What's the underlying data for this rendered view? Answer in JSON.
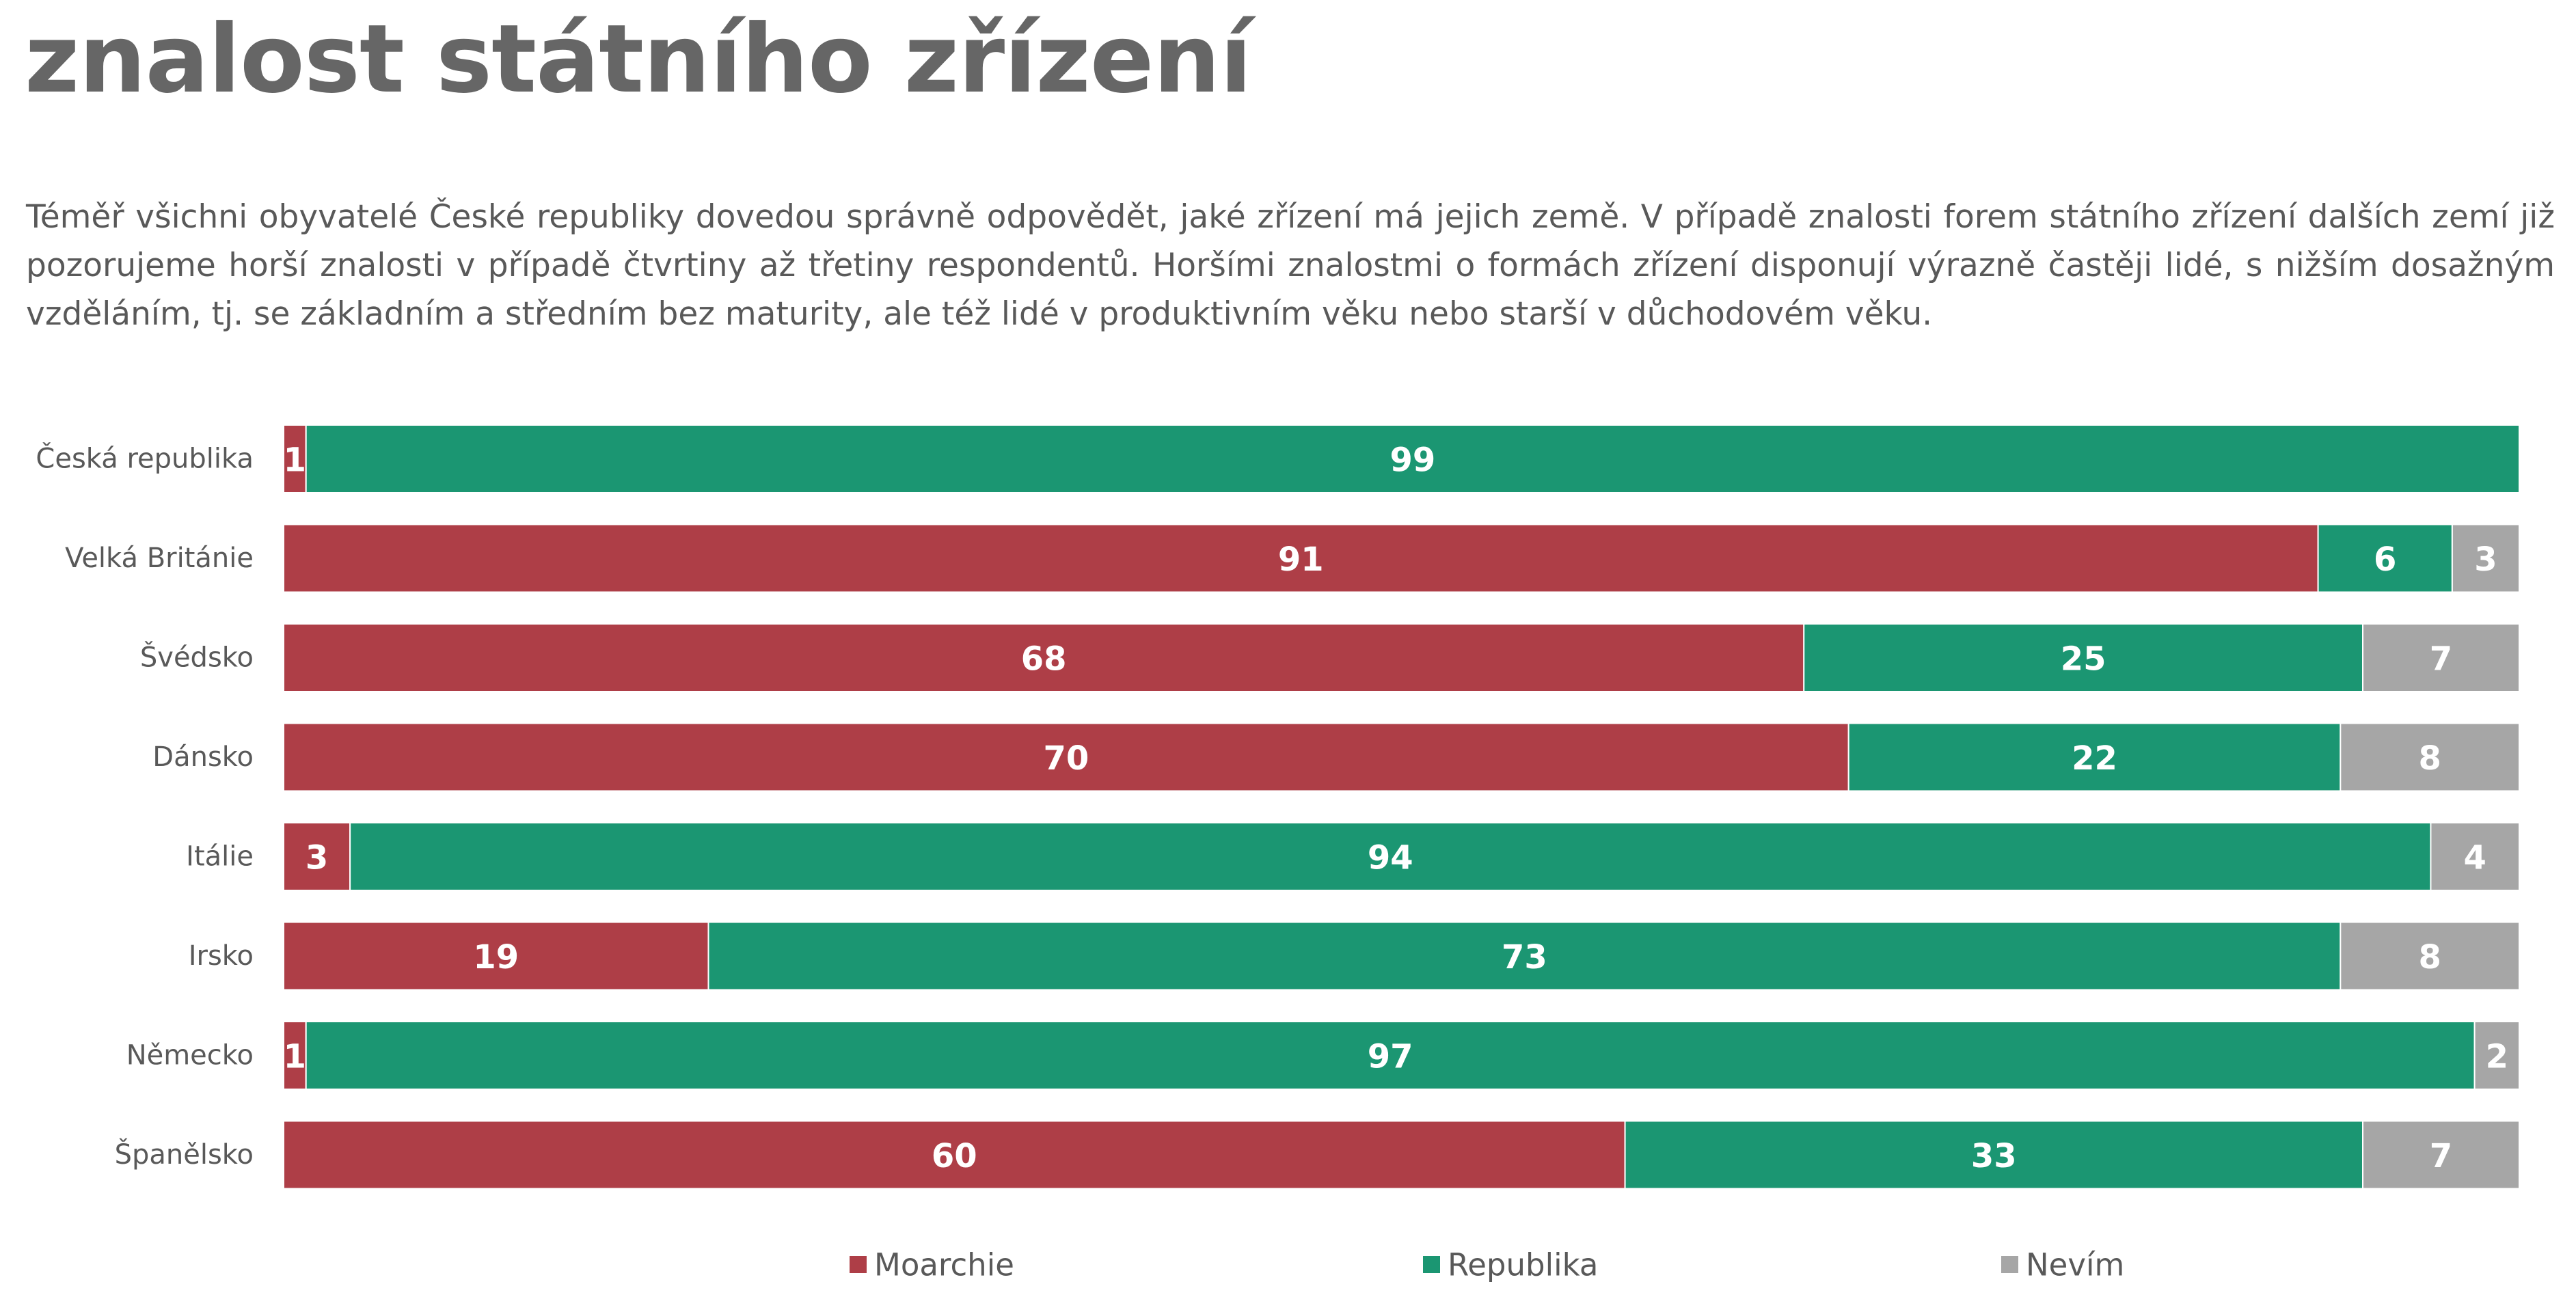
{
  "title": "znalost státního zřízení",
  "subtitle": "Téměř všichni obyvatelé České republiky dovedou správně odpovědět, jaké zřízení má jejich země. V případě znalosti forem státního zřízení dalších zemí již pozorujeme horší znalosti v případě čtvrtiny až třetiny respondentů. Horšími znalostmi o formách zřízení disponují výrazně častěji lidé, s nižším dosažným vzděláním, tj. se základním a středním bez maturity, ale též lidé v produktivním věku nebo starší v důchodovém věku.",
  "chart_data": {
    "type": "bar",
    "orientation": "horizontal",
    "stacked": "percent",
    "categories": [
      "Česká republika",
      "Velká Británie",
      "Švédsko",
      "Dánsko",
      "Itálie",
      "Irsko",
      "Německo",
      "Španělsko"
    ],
    "series": [
      {
        "name": "Moarchie",
        "color": "#ae3e47",
        "values": [
          1,
          91,
          68,
          70,
          3,
          19,
          1,
          60
        ]
      },
      {
        "name": "Republika",
        "color": "#1b9672",
        "values": [
          99,
          6,
          25,
          22,
          94,
          73,
          97,
          33
        ]
      },
      {
        "name": "Nevím",
        "color": "#a6a6a6",
        "values": [
          0,
          3,
          7,
          8,
          4,
          8,
          2,
          7
        ]
      }
    ],
    "xlim": [
      0,
      100
    ],
    "data_labels": true,
    "legend": "bottom",
    "grid": false
  }
}
